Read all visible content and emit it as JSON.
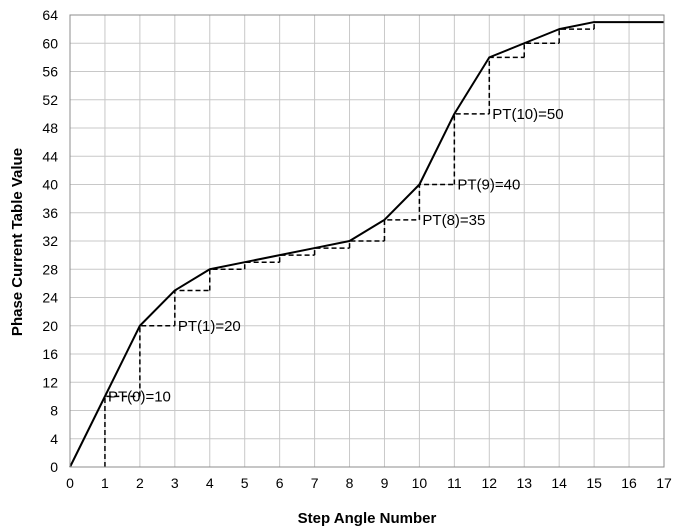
{
  "chart_data": {
    "type": "line",
    "title": "",
    "xlabel": "Step Angle Number",
    "ylabel": "Phase Current Table Value",
    "xlim": [
      0,
      17
    ],
    "ylim": [
      0,
      64
    ],
    "xticks": [
      0,
      1,
      2,
      3,
      4,
      5,
      6,
      7,
      8,
      9,
      10,
      11,
      12,
      13,
      14,
      15,
      16,
      17
    ],
    "yticks": [
      0,
      4,
      8,
      12,
      16,
      20,
      24,
      28,
      32,
      36,
      40,
      44,
      48,
      52,
      56,
      60,
      64
    ],
    "grid": true,
    "legend": "none",
    "series": [
      {
        "style": "solid",
        "color": "#000000",
        "x": [
          0,
          1,
          2,
          3,
          4,
          5,
          6,
          7,
          8,
          9,
          10,
          11,
          12,
          13,
          14,
          15,
          16,
          17
        ],
        "y": [
          0,
          10,
          20,
          25,
          28,
          29,
          30,
          31,
          32,
          35,
          40,
          50,
          58,
          60,
          62,
          63,
          63,
          63
        ]
      },
      {
        "style": "dashed-step",
        "color": "#000000",
        "steps": [
          [
            1,
            0,
            10
          ],
          [
            2,
            10,
            20
          ],
          [
            3,
            20,
            25
          ],
          [
            4,
            25,
            28
          ],
          [
            5,
            28,
            29
          ],
          [
            6,
            29,
            30
          ],
          [
            7,
            30,
            31
          ],
          [
            8,
            31,
            32
          ],
          [
            9,
            32,
            35
          ],
          [
            10,
            35,
            40
          ],
          [
            11,
            40,
            50
          ],
          [
            12,
            50,
            58
          ],
          [
            13,
            58,
            60
          ],
          [
            14,
            60,
            62
          ],
          [
            15,
            62,
            63
          ]
        ]
      }
    ],
    "annotations": [
      {
        "text": "PT(0)=10",
        "x": 1,
        "y": 10
      },
      {
        "text": "PT(1)=20",
        "x": 3,
        "y": 20
      },
      {
        "text": "PT(8)=35",
        "x": 10,
        "y": 35
      },
      {
        "text": "PT(9)=40",
        "x": 11,
        "y": 40
      },
      {
        "text": "PT(10)=50",
        "x": 12,
        "y": 50
      }
    ]
  }
}
